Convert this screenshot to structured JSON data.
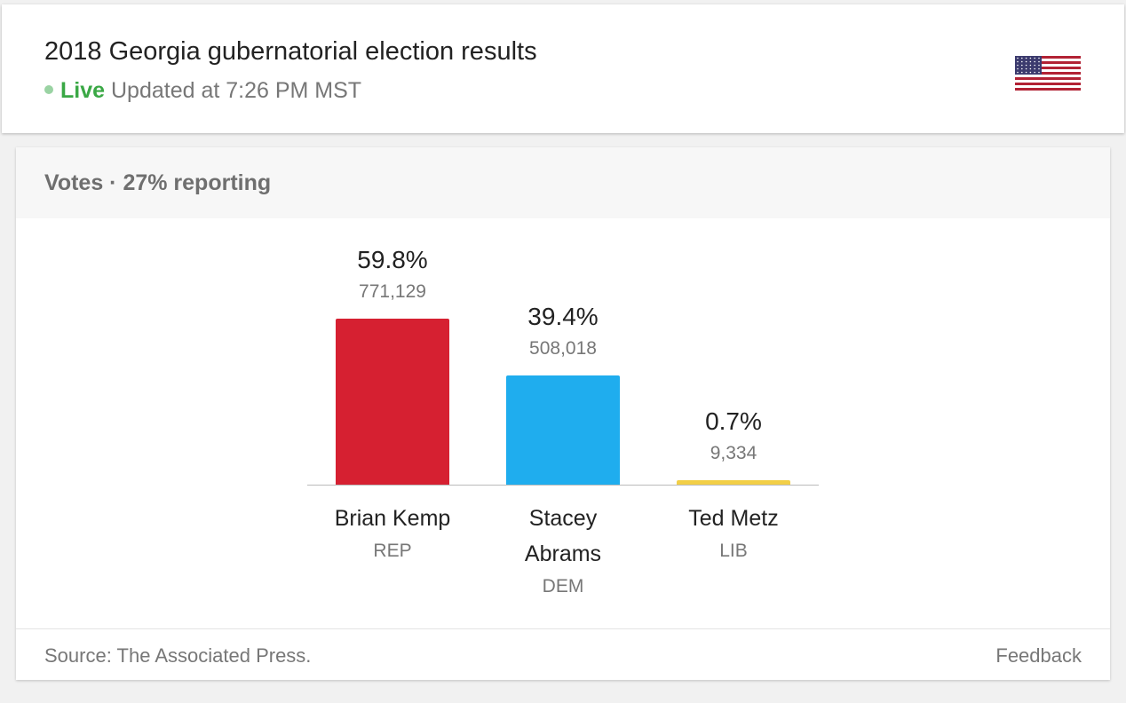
{
  "header": {
    "title": "2018 Georgia gubernatorial election results",
    "live_label": "Live",
    "updated": "Updated at 7:26 PM MST",
    "flag_icon": "us-flag-icon"
  },
  "card": {
    "heading": "Votes · 27% reporting"
  },
  "chart_data": {
    "type": "bar",
    "categories": [
      "Brian Kemp",
      "Stacey Abrams",
      "Ted Metz"
    ],
    "parties": [
      "REP",
      "DEM",
      "LIB"
    ],
    "values": [
      59.8,
      39.4,
      0.7
    ],
    "value_labels": [
      "59.8%",
      "39.4%",
      "0.7%"
    ],
    "votes": [
      "771,129",
      "508,018",
      "9,334"
    ],
    "colors": [
      "#d62031",
      "#1fadee",
      "#f2cf47"
    ],
    "ylim": [
      0,
      100
    ]
  },
  "footer": {
    "source": "Source: The Associated Press.",
    "feedback": "Feedback"
  }
}
